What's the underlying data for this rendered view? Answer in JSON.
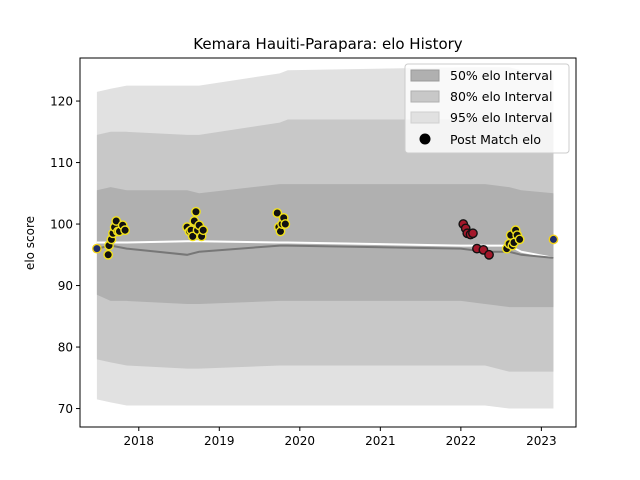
{
  "chart_data": {
    "type": "scatter",
    "title": "Kemara Hauiti-Parapara: elo History",
    "xlabel": "",
    "ylabel": "elo score",
    "xlim": [
      2017.27,
      2023.43
    ],
    "ylim": [
      67,
      127
    ],
    "x_ticks": [
      2018,
      2019,
      2020,
      2021,
      2022,
      2023
    ],
    "x_tick_labels": [
      "2018",
      "2019",
      "2020",
      "2021",
      "2022",
      "2023"
    ],
    "y_ticks": [
      70,
      80,
      90,
      100,
      110,
      120
    ],
    "y_tick_labels": [
      "70",
      "80",
      "90",
      "100",
      "110",
      "120"
    ],
    "grid": false,
    "legend_position": "top-right",
    "legend": [
      {
        "label": "50% elo Interval",
        "kind": "band",
        "color": "#b0b0b0"
      },
      {
        "label": "80% elo Interval",
        "kind": "band",
        "color": "#c8c8c8"
      },
      {
        "label": "95% elo Interval",
        "kind": "band",
        "color": "#e1e1e1"
      },
      {
        "label": "Post Match elo",
        "kind": "marker",
        "color": "#000000"
      }
    ],
    "bands": {
      "x": [
        2017.48,
        2017.65,
        2017.85,
        2018.6,
        2018.75,
        2019.75,
        2019.85,
        2022.0,
        2022.3,
        2022.6,
        2022.75,
        2023.15
      ],
      "b95_upper": [
        121.5,
        122.0,
        122.5,
        122.5,
        122.5,
        124.5,
        125.0,
        125.5,
        125.5,
        125.5,
        125.0,
        124.5
      ],
      "b95_lower": [
        71.5,
        71.0,
        70.5,
        70.5,
        70.5,
        70.5,
        70.5,
        70.5,
        70.5,
        70.0,
        70.0,
        70.0
      ],
      "b80_upper": [
        114.5,
        115.0,
        115.0,
        114.5,
        114.5,
        116.5,
        117.0,
        117.0,
        117.0,
        117.0,
        117.0,
        117.0
      ],
      "b80_lower": [
        78.0,
        77.5,
        77.0,
        76.5,
        76.5,
        77.0,
        77.0,
        77.0,
        77.0,
        76.0,
        76.0,
        76.0
      ],
      "b50_upper": [
        105.5,
        106.0,
        105.5,
        105.5,
        105.0,
        106.5,
        106.5,
        106.5,
        106.5,
        106.0,
        105.5,
        105.0
      ],
      "b50_lower": [
        88.5,
        87.5,
        87.5,
        87.0,
        87.0,
        87.5,
        87.5,
        87.5,
        87.0,
        86.5,
        86.5,
        86.5
      ]
    },
    "series": [
      {
        "kind": "line",
        "color": "#ffffff",
        "x": [
          2017.48,
          2017.65,
          2017.85,
          2018.6,
          2018.75,
          2019.75,
          2019.85,
          2022.0,
          2022.3,
          2022.6,
          2022.75,
          2023.15
        ],
        "y": [
          97.0,
          97.0,
          97.0,
          97.2,
          97.2,
          97.0,
          97.0,
          96.5,
          96.5,
          96.5,
          95.5,
          94.5
        ]
      },
      {
        "kind": "line",
        "color": "#777777",
        "x": [
          2017.48,
          2017.65,
          2017.85,
          2018.6,
          2018.75,
          2019.75,
          2019.85,
          2022.0,
          2022.3,
          2022.6,
          2022.75,
          2023.15
        ],
        "y": [
          96.0,
          96.5,
          96.0,
          95.0,
          95.5,
          96.5,
          96.5,
          96.0,
          95.5,
          95.5,
          95.0,
          94.5
        ]
      },
      {
        "kind": "points",
        "fill": "#1f2d6b",
        "stroke": "#f2d21b",
        "x": [
          2017.48,
          2023.15
        ],
        "y": [
          96.0,
          97.5
        ]
      },
      {
        "kind": "points",
        "fill": "#111111",
        "stroke": "#f2e21c",
        "x": [
          2017.62,
          2017.63,
          2017.66,
          2017.68,
          2017.7,
          2017.72,
          2017.74,
          2017.76,
          2017.8,
          2017.83,
          2018.6,
          2018.63,
          2018.65,
          2018.67,
          2018.69,
          2018.71,
          2018.73,
          2018.75,
          2018.78,
          2018.8,
          2019.72,
          2019.74,
          2019.76,
          2019.78,
          2019.8,
          2019.82,
          2022.57,
          2022.6,
          2022.62,
          2022.64,
          2022.66,
          2022.68,
          2022.7,
          2022.73
        ],
        "y": [
          95.0,
          96.5,
          97.5,
          98.5,
          99.5,
          100.5,
          98.8,
          98.8,
          99.8,
          99.0,
          99.5,
          98.8,
          99.0,
          98.0,
          100.5,
          102.0,
          99.0,
          99.8,
          98.0,
          99.0,
          101.8,
          99.5,
          98.8,
          100.0,
          101.0,
          100.0,
          96.0,
          96.8,
          98.2,
          96.5,
          97.0,
          99.0,
          98.2,
          97.5
        ]
      },
      {
        "kind": "points",
        "fill": "#a3182b",
        "stroke": "#111111",
        "x": [
          2022.03,
          2022.06,
          2022.08,
          2022.12,
          2022.15,
          2022.2,
          2022.28,
          2022.35
        ],
        "y": [
          100.0,
          99.3,
          98.5,
          98.3,
          98.5,
          96.0,
          95.8,
          95.0
        ]
      }
    ]
  }
}
